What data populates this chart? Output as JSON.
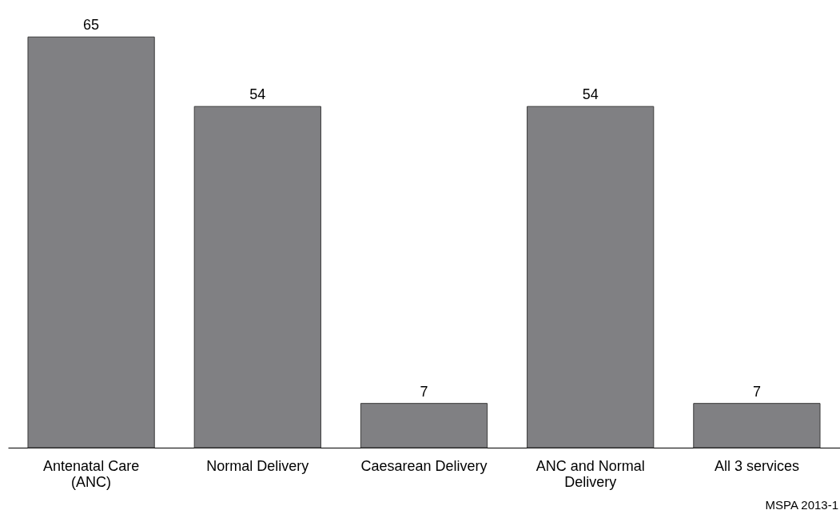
{
  "chart_data": {
    "type": "bar",
    "categories": [
      "Antenatal Care (ANC)",
      "Normal Delivery",
      "Caesarean Delivery",
      "ANC and Normal Delivery",
      "All 3 services"
    ],
    "values": [
      65,
      54,
      7,
      54,
      7
    ],
    "color": "#808083",
    "data_labels": true,
    "grid": false,
    "annotations": [
      "MSPA 2013-1"
    ]
  }
}
